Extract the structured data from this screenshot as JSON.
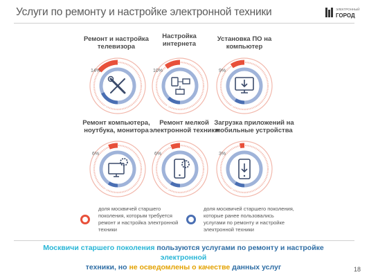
{
  "header": {
    "title": "Услуги по ремонту и настройке электронной техники"
  },
  "logo": {
    "small_text": "ЭЛЕКТРОННЫЙ",
    "big_text": "ГОРОД"
  },
  "colors": {
    "need": "#e8503a",
    "used": "#4a6fb3",
    "need_light": "#f2b8ac",
    "used_light": "#9fb3d9"
  },
  "chart_data": {
    "type": "pie",
    "series": [
      {
        "name": "доля москвичей старшего поколения, которым требуется ремонт и настройка электронной техники",
        "values": [
          14,
          10,
          9,
          6,
          6,
          3
        ]
      },
      {
        "name": "доля москвичей старшего поколения, которые ранее пользовались услугами по ремонту и настройке электронной техники",
        "values": [
          3,
          2,
          1,
          1,
          1,
          1
        ]
      }
    ],
    "categories": [
      "Ремонт и настройка телевизора",
      "Настройка интернета",
      "Установка ПО на компьютер",
      "Ремонт компьютера, ноутбука, монитора",
      "Ремонт мелкой электронной техники",
      "Загрузка приложений на мобильные устройства"
    ],
    "labels": {
      "need": [
        "14%",
        "10%",
        "9%",
        "6%",
        "6%",
        "3%"
      ],
      "used": [
        "3%",
        "2%",
        "1%",
        "1%",
        "1%",
        "1%"
      ]
    },
    "icons": [
      "wrench-screwdriver-icon",
      "network-devices-icon",
      "computer-install-icon",
      "monitor-gear-icon",
      "phone-gear-icon",
      "phone-download-icon"
    ]
  },
  "legend": {
    "need": "доля москвичей старшего поколения, которым требуется ремонт и настройка электронной техники",
    "used": "доля москвичей старшего поколения, которые ранее пользовались услугами по ремонту и настройке электронной техники"
  },
  "conclusion": {
    "part1": "Москвичи старшего поколения ",
    "part2": "пользуются услугами по ремонту и настройке ",
    "part3": "электронной",
    "part4": "техники, но ",
    "part5": "не осведомлены о качестве ",
    "part6": "данных услуг"
  },
  "page_number": "18"
}
